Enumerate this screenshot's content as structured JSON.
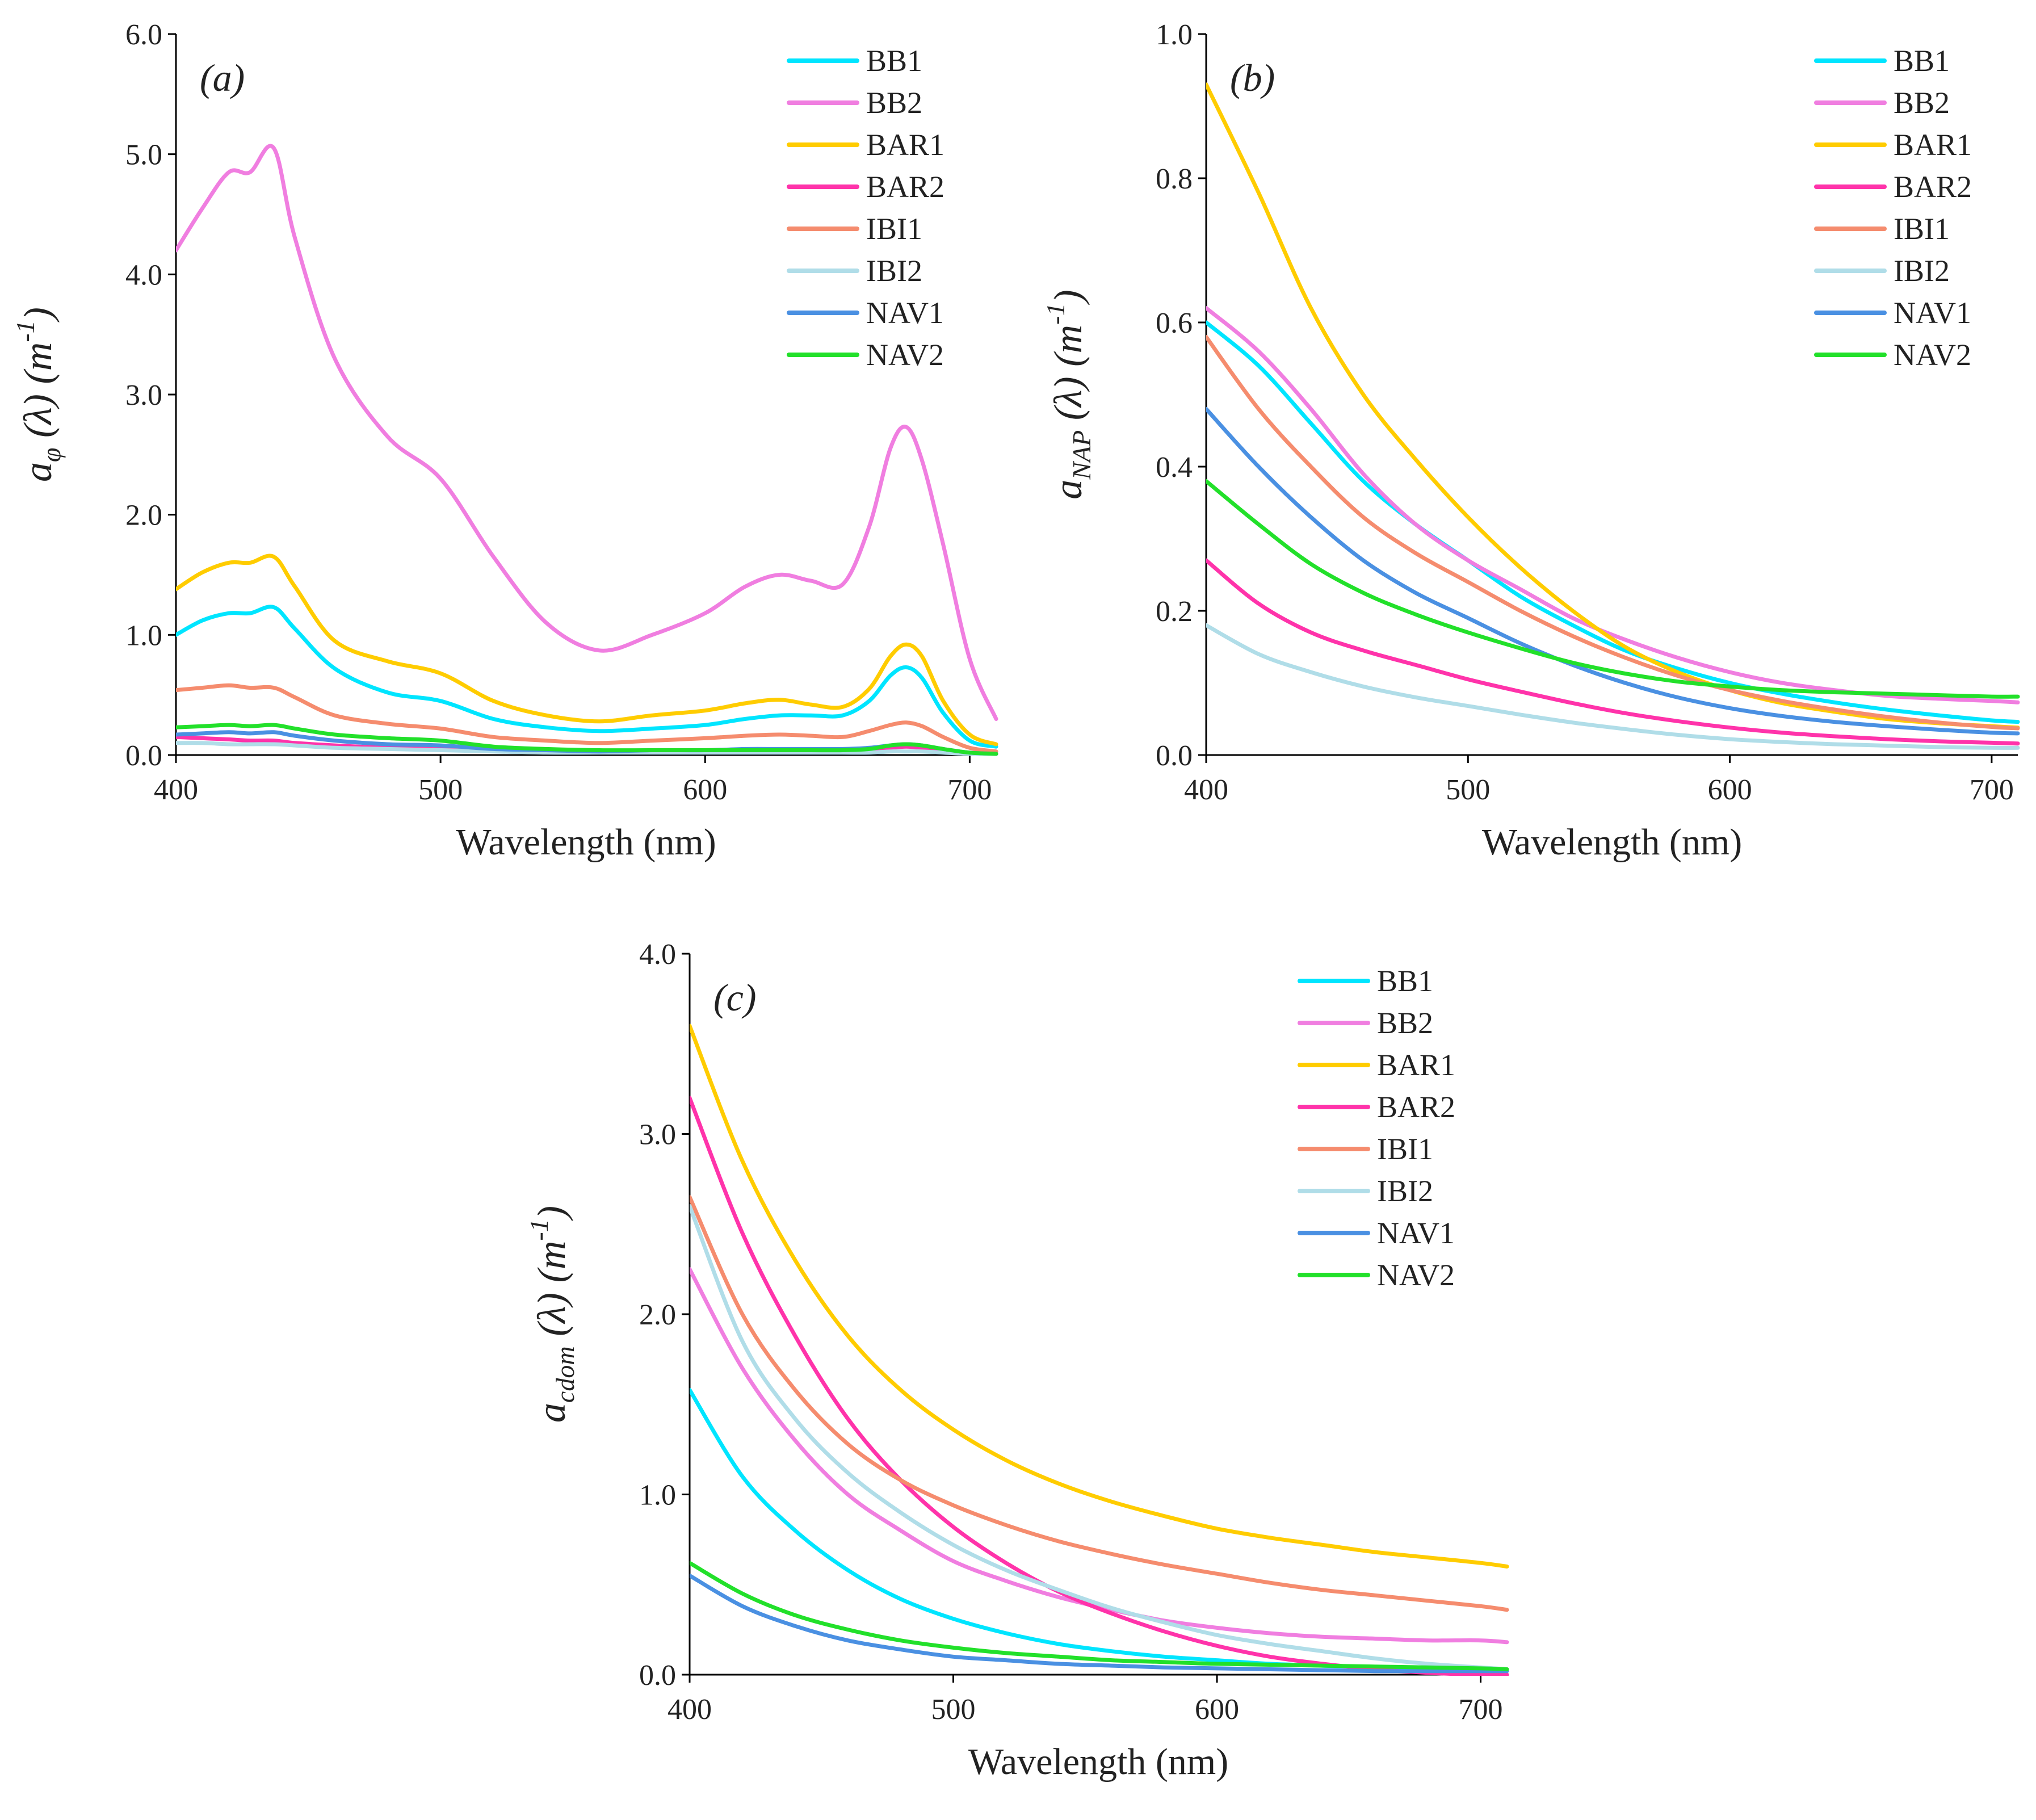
{
  "chart_data": [
    {
      "type": "line",
      "panel_label": "(a)",
      "xlabel": "Wavelength  (nm)",
      "ylabel": {
        "base": "a",
        "sub": "φ",
        "rest": " (λ) ",
        "unit_base": "(m",
        "unit_sup": "-1",
        "unit_end": ")"
      },
      "xlim": [
        400,
        710
      ],
      "ylim": [
        0,
        6
      ],
      "xticks": [
        400,
        500,
        600,
        700
      ],
      "yticks": [
        "0.0",
        "1.0",
        "2.0",
        "3.0",
        "4.0",
        "5.0",
        "6.0"
      ],
      "legend_position": "top-right",
      "x": [
        400,
        410,
        420,
        428,
        437,
        445,
        460,
        480,
        500,
        520,
        540,
        560,
        580,
        600,
        615,
        628,
        640,
        652,
        662,
        670,
        676,
        682,
        690,
        700,
        710
      ],
      "series": [
        {
          "name": "BB1",
          "color": "#00e5ff",
          "values": [
            1.0,
            1.12,
            1.18,
            1.18,
            1.23,
            1.05,
            0.72,
            0.52,
            0.45,
            0.3,
            0.23,
            0.2,
            0.22,
            0.25,
            0.3,
            0.33,
            0.33,
            0.33,
            0.45,
            0.66,
            0.73,
            0.64,
            0.35,
            0.12,
            0.07
          ]
        },
        {
          "name": "BB2",
          "color": "#f07ee0",
          "values": [
            4.2,
            4.55,
            4.85,
            4.85,
            5.05,
            4.3,
            3.3,
            2.65,
            2.3,
            1.65,
            1.1,
            0.87,
            1.0,
            1.18,
            1.4,
            1.5,
            1.45,
            1.42,
            1.9,
            2.55,
            2.73,
            2.45,
            1.75,
            0.8,
            0.3
          ]
        },
        {
          "name": "BAR1",
          "color": "#ffcc00",
          "values": [
            1.38,
            1.52,
            1.6,
            1.6,
            1.65,
            1.4,
            0.95,
            0.78,
            0.68,
            0.45,
            0.33,
            0.28,
            0.33,
            0.37,
            0.43,
            0.46,
            0.42,
            0.4,
            0.55,
            0.82,
            0.92,
            0.82,
            0.45,
            0.17,
            0.09
          ]
        },
        {
          "name": "BAR2",
          "color": "#ff33aa",
          "values": [
            0.15,
            0.14,
            0.13,
            0.12,
            0.12,
            0.1,
            0.08,
            0.06,
            0.05,
            0.04,
            0.03,
            0.03,
            0.03,
            0.03,
            0.03,
            0.03,
            0.03,
            0.03,
            0.04,
            0.06,
            0.07,
            0.06,
            0.04,
            0.02,
            0.01
          ]
        },
        {
          "name": "IBI1",
          "color": "#f58c6e",
          "values": [
            0.54,
            0.56,
            0.58,
            0.56,
            0.56,
            0.48,
            0.33,
            0.26,
            0.22,
            0.15,
            0.12,
            0.1,
            0.12,
            0.14,
            0.16,
            0.17,
            0.16,
            0.15,
            0.2,
            0.25,
            0.27,
            0.24,
            0.15,
            0.06,
            0.03
          ]
        },
        {
          "name": "IBI2",
          "color": "#b0dde8",
          "values": [
            0.1,
            0.1,
            0.09,
            0.09,
            0.09,
            0.08,
            0.06,
            0.05,
            0.04,
            0.03,
            0.02,
            0.02,
            0.02,
            0.02,
            0.02,
            0.02,
            0.02,
            0.02,
            0.02,
            0.03,
            0.03,
            0.03,
            0.02,
            0.01,
            0.01
          ]
        },
        {
          "name": "NAV1",
          "color": "#4a90e2",
          "values": [
            0.17,
            0.18,
            0.19,
            0.18,
            0.19,
            0.16,
            0.12,
            0.09,
            0.08,
            0.05,
            0.04,
            0.03,
            0.04,
            0.04,
            0.05,
            0.05,
            0.05,
            0.05,
            0.06,
            0.08,
            0.09,
            0.08,
            0.05,
            0.02,
            0.01
          ]
        },
        {
          "name": "NAV2",
          "color": "#22e02a",
          "values": [
            0.23,
            0.24,
            0.25,
            0.24,
            0.25,
            0.22,
            0.17,
            0.14,
            0.12,
            0.07,
            0.05,
            0.04,
            0.04,
            0.04,
            0.04,
            0.04,
            0.04,
            0.04,
            0.05,
            0.08,
            0.09,
            0.08,
            0.05,
            0.02,
            0.01
          ]
        }
      ]
    },
    {
      "type": "line",
      "panel_label": "(b)",
      "xlabel": "Wavelength  (nm)",
      "ylabel": {
        "base": "a",
        "sub": "NAP",
        "rest": " (λ) ",
        "unit_base": "(m",
        "unit_sup": "-1",
        "unit_end": ")"
      },
      "xlim": [
        400,
        710
      ],
      "ylim": [
        0,
        1
      ],
      "xticks": [
        400,
        500,
        600,
        700
      ],
      "yticks": [
        "0.0",
        "0.2",
        "0.4",
        "0.6",
        "0.8",
        "1.0"
      ],
      "legend_position": "top-right",
      "x": [
        400,
        420,
        440,
        460,
        480,
        500,
        520,
        540,
        560,
        580,
        600,
        620,
        640,
        660,
        680,
        700,
        710
      ],
      "series": [
        {
          "name": "BB1",
          "color": "#00e5ff",
          "values": [
            0.6,
            0.54,
            0.46,
            0.38,
            0.32,
            0.27,
            0.22,
            0.18,
            0.145,
            0.12,
            0.1,
            0.085,
            0.073,
            0.063,
            0.055,
            0.048,
            0.046
          ]
        },
        {
          "name": "BB2",
          "color": "#f07ee0",
          "values": [
            0.62,
            0.56,
            0.48,
            0.39,
            0.32,
            0.27,
            0.23,
            0.19,
            0.16,
            0.135,
            0.115,
            0.1,
            0.09,
            0.082,
            0.078,
            0.075,
            0.073
          ]
        },
        {
          "name": "BAR1",
          "color": "#ffcc00",
          "values": [
            0.93,
            0.78,
            0.62,
            0.5,
            0.41,
            0.33,
            0.26,
            0.2,
            0.15,
            0.115,
            0.09,
            0.072,
            0.06,
            0.05,
            0.044,
            0.04,
            0.038
          ]
        },
        {
          "name": "BAR2",
          "color": "#ff33aa",
          "values": [
            0.27,
            0.21,
            0.17,
            0.145,
            0.125,
            0.105,
            0.088,
            0.072,
            0.058,
            0.047,
            0.038,
            0.031,
            0.026,
            0.022,
            0.019,
            0.017,
            0.016
          ]
        },
        {
          "name": "IBI1",
          "color": "#f58c6e",
          "values": [
            0.58,
            0.48,
            0.4,
            0.33,
            0.28,
            0.24,
            0.2,
            0.165,
            0.135,
            0.11,
            0.09,
            0.075,
            0.063,
            0.053,
            0.045,
            0.039,
            0.037
          ]
        },
        {
          "name": "IBI2",
          "color": "#b0dde8",
          "values": [
            0.18,
            0.14,
            0.115,
            0.095,
            0.08,
            0.068,
            0.056,
            0.045,
            0.036,
            0.028,
            0.022,
            0.018,
            0.015,
            0.013,
            0.011,
            0.01,
            0.01
          ]
        },
        {
          "name": "NAV1",
          "color": "#4a90e2",
          "values": [
            0.48,
            0.4,
            0.33,
            0.27,
            0.225,
            0.19,
            0.155,
            0.125,
            0.1,
            0.08,
            0.065,
            0.054,
            0.046,
            0.04,
            0.035,
            0.031,
            0.03
          ]
        },
        {
          "name": "NAV2",
          "color": "#22e02a",
          "values": [
            0.38,
            0.32,
            0.265,
            0.225,
            0.195,
            0.17,
            0.148,
            0.128,
            0.113,
            0.102,
            0.095,
            0.09,
            0.087,
            0.085,
            0.083,
            0.081,
            0.081
          ]
        }
      ]
    },
    {
      "type": "line",
      "panel_label": "(c)",
      "xlabel": "Wavelength  (nm)",
      "ylabel": {
        "base": "a",
        "sub": "cdom",
        "rest": " (λ) ",
        "unit_base": "(m",
        "unit_sup": "-1",
        "unit_end": ")"
      },
      "xlim": [
        400,
        710
      ],
      "ylim": [
        0,
        4
      ],
      "xticks": [
        400,
        500,
        600,
        700
      ],
      "yticks": [
        "0.0",
        "1.0",
        "2.0",
        "3.0",
        "4.0"
      ],
      "legend_position": "top-right",
      "x": [
        400,
        420,
        440,
        460,
        480,
        500,
        520,
        540,
        560,
        580,
        600,
        620,
        640,
        660,
        680,
        700,
        710
      ],
      "series": [
        {
          "name": "BB1",
          "color": "#00e5ff",
          "values": [
            1.58,
            1.1,
            0.8,
            0.58,
            0.42,
            0.31,
            0.23,
            0.17,
            0.13,
            0.1,
            0.08,
            0.06,
            0.05,
            0.04,
            0.03,
            0.025,
            0.02
          ]
        },
        {
          "name": "BB2",
          "color": "#f07ee0",
          "values": [
            2.25,
            1.7,
            1.3,
            1.0,
            0.8,
            0.63,
            0.52,
            0.43,
            0.36,
            0.3,
            0.26,
            0.23,
            0.21,
            0.2,
            0.19,
            0.19,
            0.18
          ]
        },
        {
          "name": "BAR1",
          "color": "#ffcc00",
          "values": [
            3.6,
            2.85,
            2.3,
            1.88,
            1.58,
            1.36,
            1.19,
            1.06,
            0.96,
            0.88,
            0.81,
            0.76,
            0.72,
            0.68,
            0.65,
            0.62,
            0.6
          ]
        },
        {
          "name": "BAR2",
          "color": "#ff33aa",
          "values": [
            3.2,
            2.45,
            1.88,
            1.42,
            1.08,
            0.82,
            0.62,
            0.46,
            0.34,
            0.24,
            0.16,
            0.1,
            0.06,
            0.03,
            0.01,
            0.0,
            0.0
          ]
        },
        {
          "name": "IBI1",
          "color": "#f58c6e",
          "values": [
            2.65,
            2.0,
            1.58,
            1.28,
            1.08,
            0.94,
            0.83,
            0.74,
            0.67,
            0.61,
            0.56,
            0.51,
            0.47,
            0.44,
            0.41,
            0.38,
            0.36
          ]
        },
        {
          "name": "IBI2",
          "color": "#b0dde8",
          "values": [
            2.6,
            1.85,
            1.42,
            1.12,
            0.9,
            0.72,
            0.58,
            0.47,
            0.37,
            0.29,
            0.22,
            0.17,
            0.13,
            0.09,
            0.06,
            0.04,
            0.03
          ]
        },
        {
          "name": "NAV1",
          "color": "#4a90e2",
          "values": [
            0.55,
            0.38,
            0.27,
            0.19,
            0.14,
            0.1,
            0.08,
            0.06,
            0.05,
            0.04,
            0.035,
            0.03,
            0.025,
            0.02,
            0.02,
            0.02,
            0.02
          ]
        },
        {
          "name": "NAV2",
          "color": "#22e02a",
          "values": [
            0.62,
            0.45,
            0.33,
            0.25,
            0.19,
            0.15,
            0.12,
            0.1,
            0.08,
            0.07,
            0.06,
            0.055,
            0.05,
            0.045,
            0.04,
            0.035,
            0.03
          ]
        }
      ]
    }
  ]
}
